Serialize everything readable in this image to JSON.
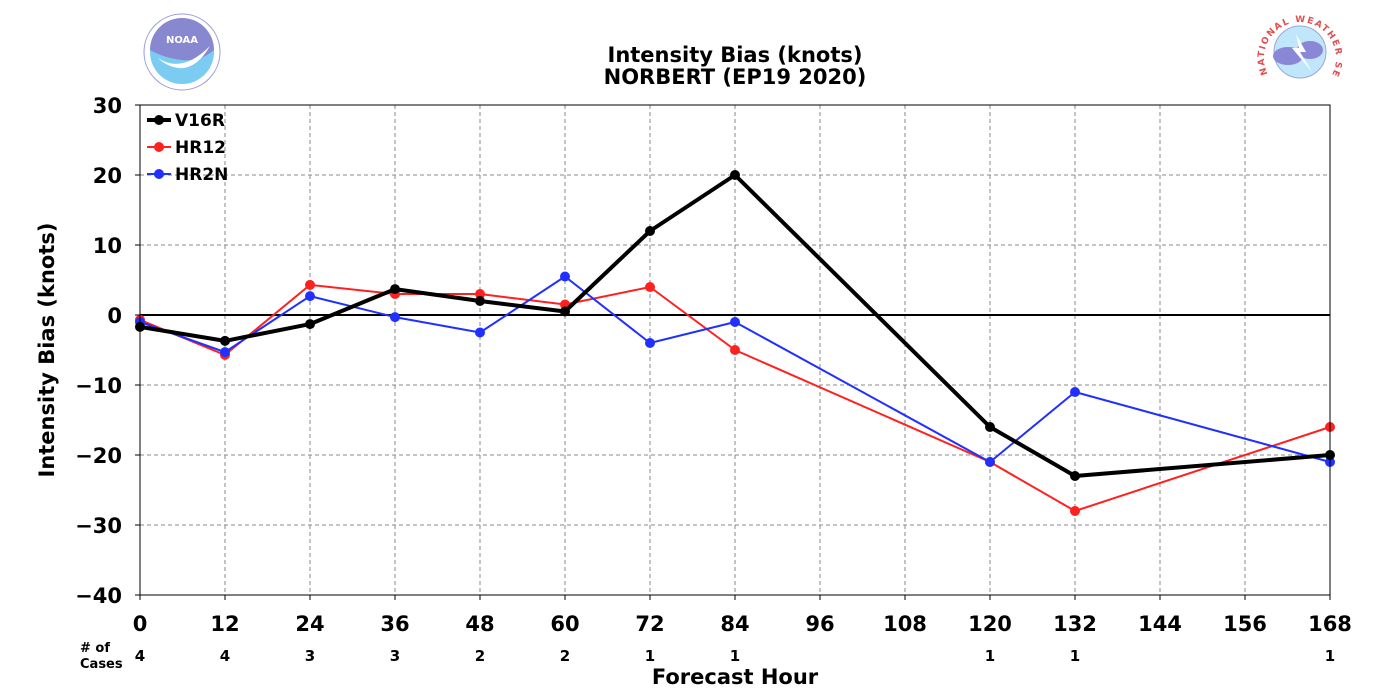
{
  "title_line1": "Intensity Bias (knots)",
  "title_line2": "NORBERT (EP19 2020)",
  "logos": {
    "left": {
      "icon": "noaa-logo",
      "text": "NOAA"
    },
    "right": {
      "icon": "national-weather-service-logo",
      "text": "NATIONAL WEATHER SERVICE"
    }
  },
  "cases_header": [
    "# of",
    "Cases"
  ],
  "chart_data": {
    "type": "line",
    "title": "Intensity Bias (knots)\nNORBERT (EP19 2020)",
    "xlabel": "Forecast Hour",
    "ylabel": "Intensity Bias (knots)",
    "xlim": [
      0,
      168
    ],
    "ylim": [
      -40,
      30
    ],
    "xticks": [
      0,
      12,
      24,
      36,
      48,
      60,
      72,
      84,
      96,
      108,
      120,
      132,
      144,
      156,
      168
    ],
    "yticks": [
      -40,
      -30,
      -20,
      -10,
      0,
      10,
      20,
      30
    ],
    "grid": true,
    "legend_position": "top-left",
    "series": [
      {
        "name": "V16R",
        "color": "#000000",
        "width": 4,
        "x": [
          0,
          12,
          24,
          36,
          48,
          60,
          72,
          84,
          120,
          132,
          168
        ],
        "y": [
          -1.7,
          -3.7,
          -1.3,
          3.7,
          2.0,
          0.5,
          12.0,
          20.0,
          -16.0,
          -23.0,
          -20.0
        ]
      },
      {
        "name": "HR12",
        "color": "#ff2020",
        "width": 2,
        "x": [
          0,
          12,
          24,
          36,
          48,
          60,
          72,
          84,
          120,
          132,
          168
        ],
        "y": [
          -0.7,
          -5.7,
          4.3,
          3.0,
          3.0,
          1.5,
          4.0,
          -5.0,
          -21.0,
          -28.0,
          -16.0
        ]
      },
      {
        "name": "HR2N",
        "color": "#2030ff",
        "width": 2,
        "x": [
          0,
          12,
          24,
          36,
          48,
          60,
          72,
          84,
          120,
          132,
          168
        ],
        "y": [
          -1.0,
          -5.3,
          2.7,
          -0.3,
          -2.5,
          5.5,
          -4.0,
          -1.0,
          -21.0,
          -11.0,
          -21.0
        ]
      }
    ],
    "cases": [
      {
        "x": 0,
        "n": "4"
      },
      {
        "x": 12,
        "n": "4"
      },
      {
        "x": 24,
        "n": "3"
      },
      {
        "x": 36,
        "n": "3"
      },
      {
        "x": 48,
        "n": "2"
      },
      {
        "x": 60,
        "n": "2"
      },
      {
        "x": 72,
        "n": "1"
      },
      {
        "x": 84,
        "n": "1"
      },
      {
        "x": 120,
        "n": "1"
      },
      {
        "x": 132,
        "n": "1"
      },
      {
        "x": 168,
        "n": "1"
      }
    ]
  }
}
